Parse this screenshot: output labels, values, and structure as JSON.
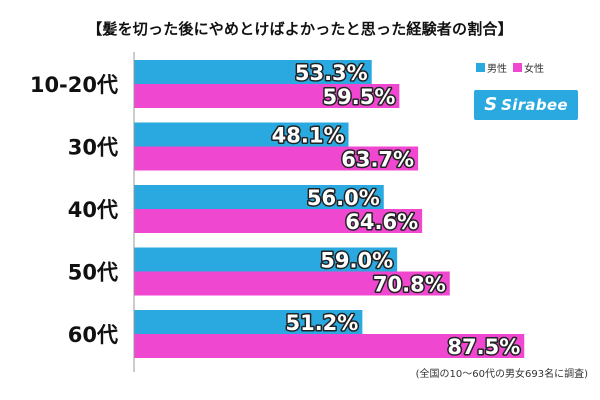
{
  "title": "【髪を切った後にやめとけばよかったと思った経験者の割合】",
  "logo": {
    "mark": "S",
    "text": "Sirabee"
  },
  "footnote": "(全国の10〜60代の男女693名に調査)",
  "colors": {
    "male": "#29a9e0",
    "female": "#f047d0"
  },
  "chart_data": {
    "type": "bar",
    "orientation": "horizontal",
    "categories": [
      "10-20代",
      "30代",
      "40代",
      "50代",
      "60代"
    ],
    "series": [
      {
        "name": "男性",
        "values": [
          53.3,
          48.1,
          56.0,
          59.0,
          51.2
        ],
        "labels": [
          "53.3%",
          "48.1%",
          "56.0%",
          "59.0%",
          "51.2%"
        ]
      },
      {
        "name": "女性",
        "values": [
          59.5,
          63.7,
          64.6,
          70.8,
          87.5
        ],
        "labels": [
          "59.5%",
          "63.7%",
          "64.6%",
          "70.8%",
          "87.5%"
        ]
      }
    ],
    "xlim": [
      0,
      100
    ],
    "grid": false,
    "legend": "top-right"
  }
}
